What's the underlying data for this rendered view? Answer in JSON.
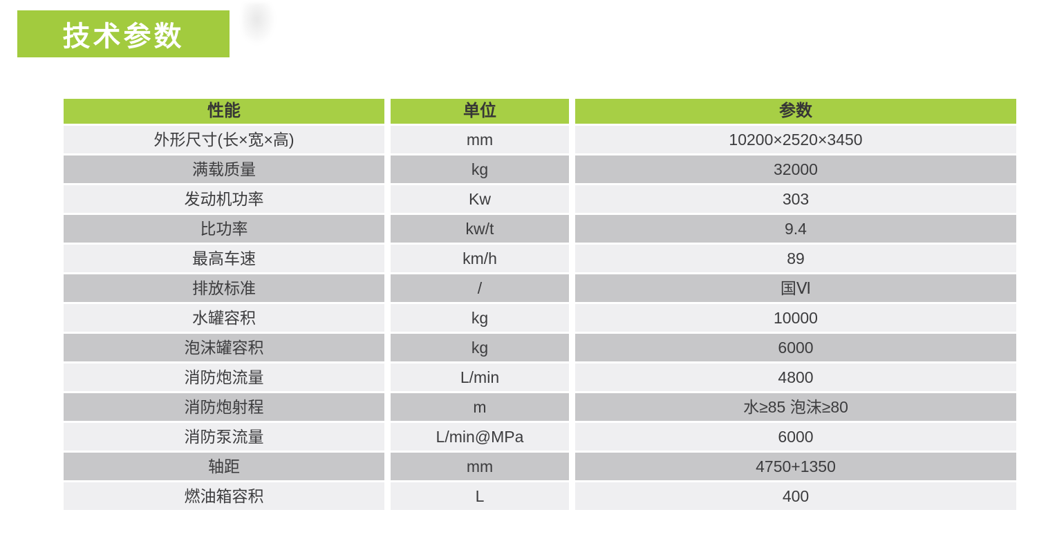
{
  "theme": {
    "badge_green": "#a2cb3e",
    "header_green": "#a7cf45",
    "row_light": "#efeff1",
    "row_dark": "#c7c7c9",
    "text": "#3c3c3e",
    "header_text": "#363636",
    "badge_text": "#ffffff"
  },
  "title_badge": {
    "label": "技术参数"
  },
  "spec_table": {
    "headers": {
      "name": "性能",
      "unit": "单位",
      "value": "参数"
    },
    "rows": [
      {
        "name": "外形尺寸(长×宽×高)",
        "unit": "mm",
        "value": "10200×2520×3450"
      },
      {
        "name": "满载质量",
        "unit": "kg",
        "value": "32000"
      },
      {
        "name": "发动机功率",
        "unit": "Kw",
        "value": "303"
      },
      {
        "name": "比功率",
        "unit": "kw/t",
        "value": "9.4"
      },
      {
        "name": "最高车速",
        "unit": "km/h",
        "value": "89"
      },
      {
        "name": "排放标准",
        "unit": "/",
        "value": "国Ⅵ"
      },
      {
        "name": "水罐容积",
        "unit": "kg",
        "value": "10000"
      },
      {
        "name": "泡沫罐容积",
        "unit": "kg",
        "value": "6000"
      },
      {
        "name": "消防炮流量",
        "unit": "L/min",
        "value": "4800"
      },
      {
        "name": "消防炮射程",
        "unit": "m",
        "value": "水≥85 泡沫≥80"
      },
      {
        "name": "消防泵流量",
        "unit": "L/min@MPa",
        "value": "6000"
      },
      {
        "name": "轴距",
        "unit": "mm",
        "value": "4750+1350"
      },
      {
        "name": "燃油箱容积",
        "unit": "L",
        "value": "400"
      }
    ]
  }
}
